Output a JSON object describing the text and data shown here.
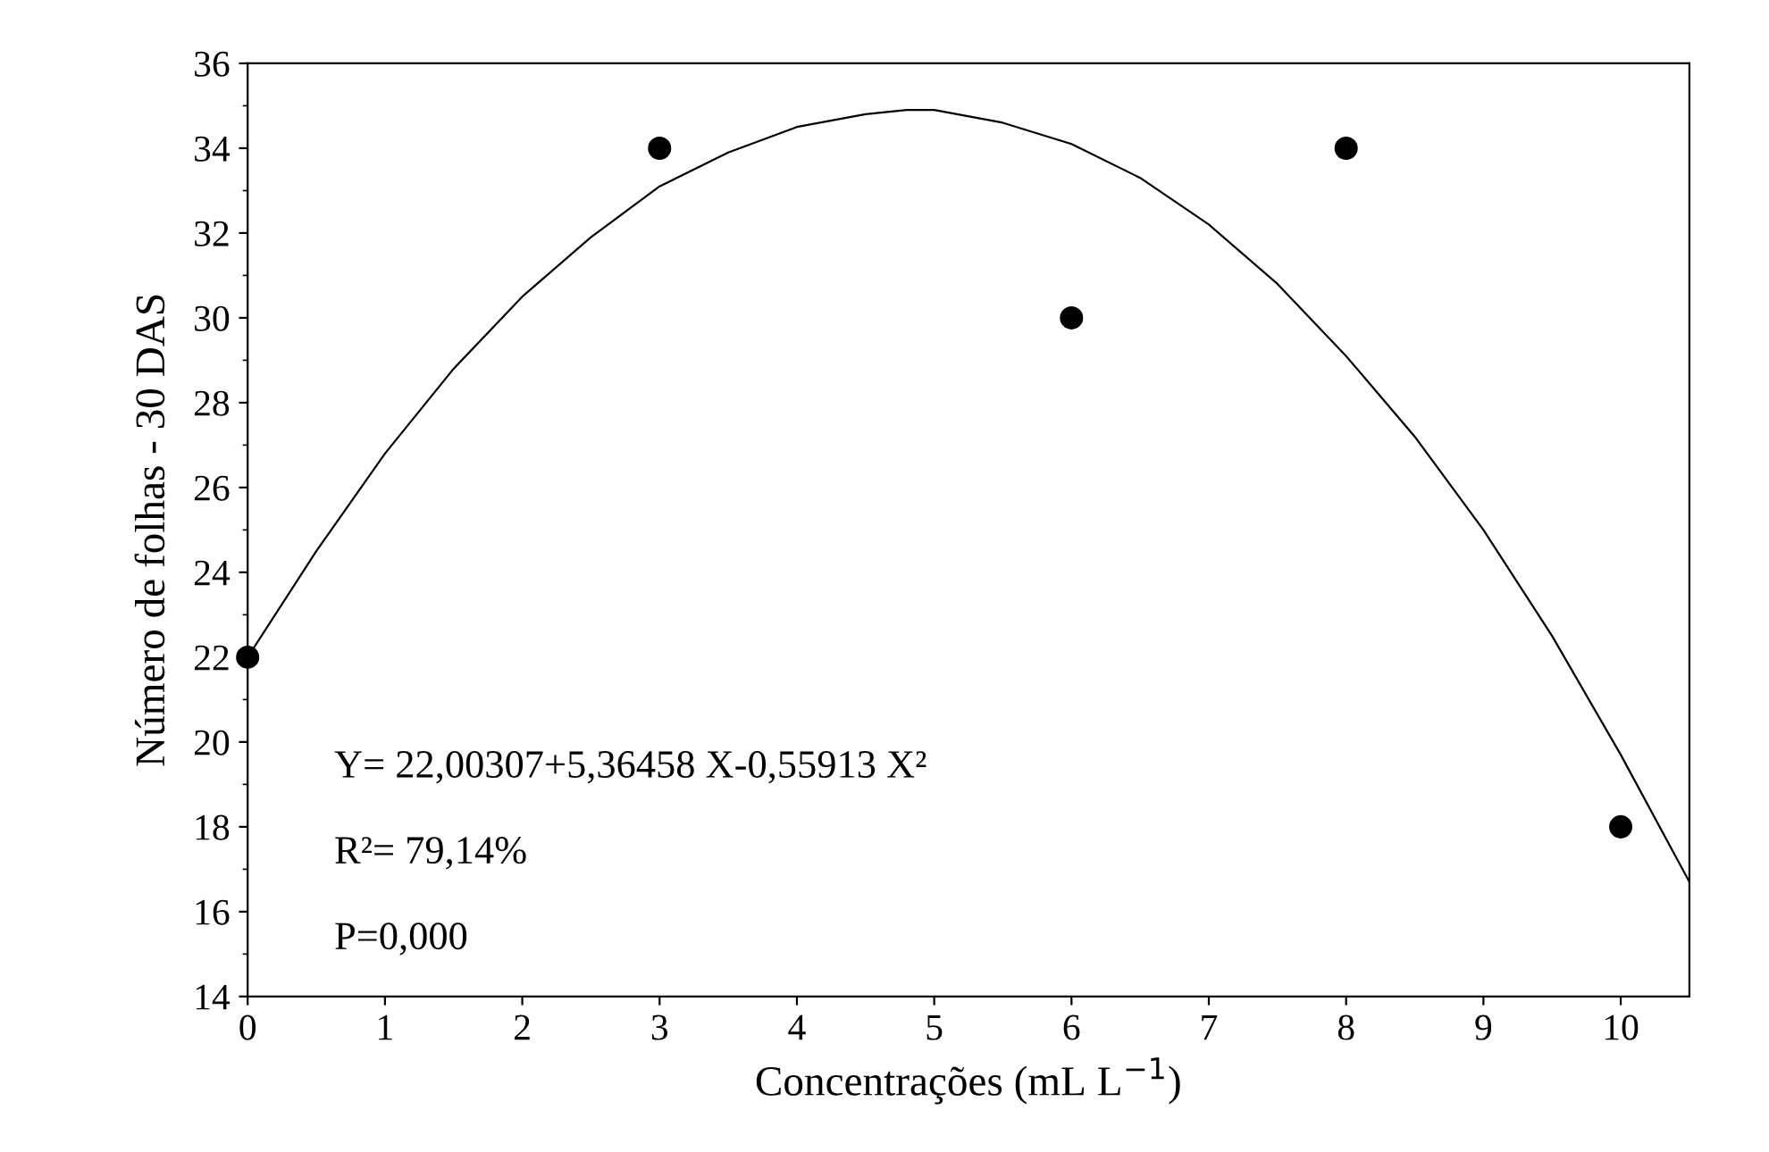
{
  "chart_data": {
    "type": "scatter",
    "xlabel": "Concentrações (mL L$^{−1}$)",
    "ylabel": "Número de folhas - 30 DAS",
    "xlim": [
      0,
      10.5
    ],
    "xticks": [
      0,
      1,
      2,
      3,
      4,
      5,
      6,
      7,
      8,
      9,
      10
    ],
    "ylim": [
      14,
      36
    ],
    "yticks": [
      14,
      16,
      18,
      20,
      22,
      24,
      26,
      28,
      30,
      32,
      34,
      36
    ],
    "grid": false,
    "legend": false,
    "annotations": [
      "Y= 22,00307+5,36458 X-0,55913 X²",
      "R²= 79,14%",
      "P=0,000"
    ],
    "series": [
      {
        "color": "#000000",
        "marker": "circle",
        "x": [
          0,
          3,
          6,
          8,
          10
        ],
        "values": [
          22,
          34,
          30,
          34,
          18
        ]
      },
      {
        "type": "line",
        "color": "#000000",
        "marker": "none",
        "x": [
          0,
          0.5,
          1,
          1.5,
          2,
          2.5,
          3,
          3.5,
          4,
          4.5,
          4.8,
          5,
          5.5,
          6,
          6.5,
          7,
          7.5,
          8,
          8.5,
          9,
          9.5,
          10,
          10.5
        ],
        "values": [
          22.0,
          24.5,
          26.8,
          28.8,
          30.5,
          31.9,
          33.1,
          33.9,
          34.5,
          34.8,
          34.9,
          34.9,
          34.6,
          34.1,
          33.3,
          32.2,
          30.8,
          29.1,
          27.2,
          25.0,
          22.5,
          19.7,
          16.7
        ]
      }
    ]
  }
}
